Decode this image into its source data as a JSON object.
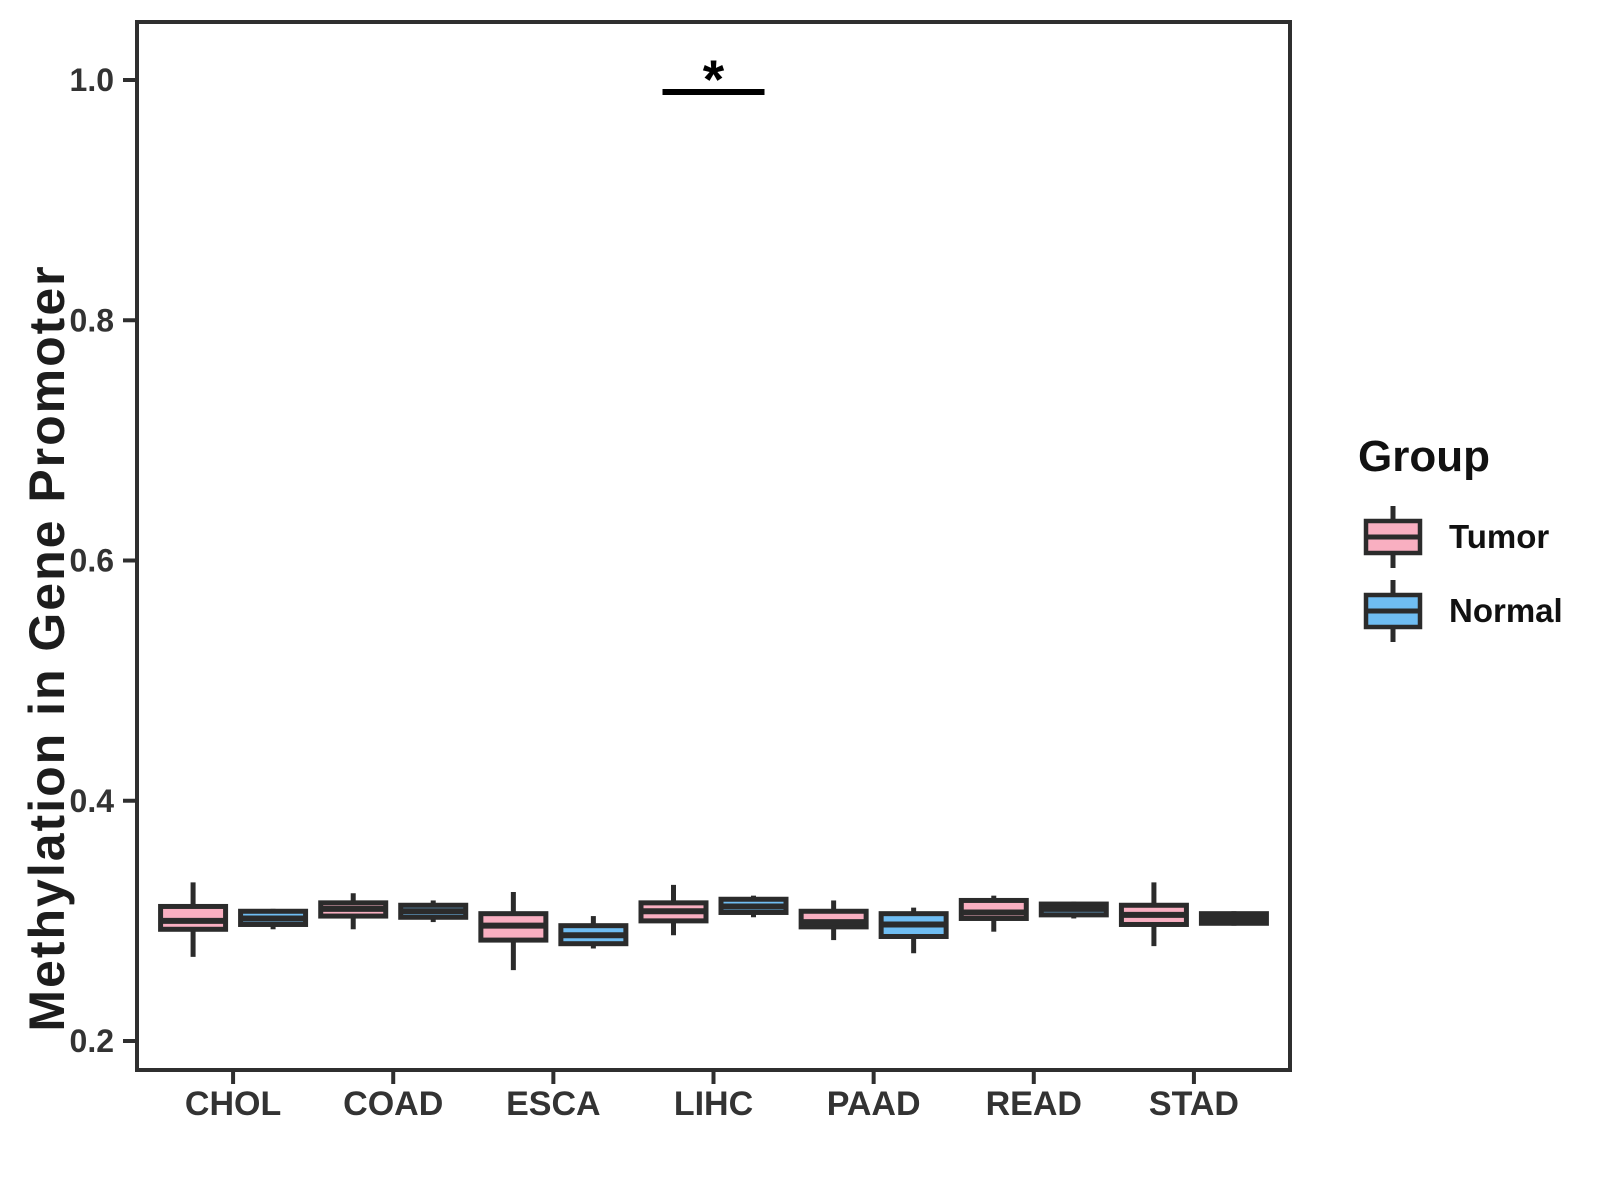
{
  "legend": {
    "title": "Group",
    "items": [
      {
        "label": "Tumor",
        "color": "#F9AFC1"
      },
      {
        "label": "Normal",
        "color": "#6FBDF2"
      }
    ]
  },
  "chart_data": {
    "type": "boxplot",
    "title": "",
    "ylabel": "Methylation in Gene Promoter",
    "xlabel": "",
    "grid": "off",
    "legend_position": "right",
    "categories": [
      "CHOL",
      "COAD",
      "ESCA",
      "LIHC",
      "PAAD",
      "READ",
      "STAD"
    ],
    "groups": [
      "Tumor",
      "Normal"
    ],
    "y_axis": {
      "range": [
        0.176,
        1.048
      ],
      "ticks": [
        {
          "label": "0.2",
          "value": 0.2
        },
        {
          "label": "0.4",
          "value": 0.4
        },
        {
          "label": "0.6",
          "value": 0.6
        },
        {
          "label": "0.8",
          "value": 0.8
        },
        {
          "label": "1.0",
          "value": 1.0
        }
      ]
    },
    "series": [
      {
        "name": "Tumor",
        "color": "#F9AFC1",
        "boxes": [
          {
            "category": "CHOL",
            "whisker_low": 0.27,
            "q1": 0.293,
            "median": 0.3,
            "q3": 0.312,
            "whisker_high": 0.332
          },
          {
            "category": "COAD",
            "whisker_low": 0.293,
            "q1": 0.304,
            "median": 0.31,
            "q3": 0.315,
            "whisker_high": 0.323
          },
          {
            "category": "ESCA",
            "whisker_low": 0.259,
            "q1": 0.284,
            "median": 0.296,
            "q3": 0.306,
            "whisker_high": 0.324
          },
          {
            "category": "LIHC",
            "whisker_low": 0.288,
            "q1": 0.3,
            "median": 0.308,
            "q3": 0.315,
            "whisker_high": 0.33
          },
          {
            "category": "PAAD",
            "whisker_low": 0.284,
            "q1": 0.295,
            "median": 0.299,
            "q3": 0.308,
            "whisker_high": 0.317
          },
          {
            "category": "READ",
            "whisker_low": 0.291,
            "q1": 0.302,
            "median": 0.307,
            "q3": 0.317,
            "whisker_high": 0.321
          },
          {
            "category": "STAD",
            "whisker_low": 0.279,
            "q1": 0.297,
            "median": 0.305,
            "q3": 0.313,
            "whisker_high": 0.332
          }
        ]
      },
      {
        "name": "Normal",
        "color": "#6FBDF2",
        "boxes": [
          {
            "category": "CHOL",
            "whisker_low": 0.293,
            "q1": 0.297,
            "median": 0.302,
            "q3": 0.308,
            "whisker_high": 0.31
          },
          {
            "category": "COAD",
            "whisker_low": 0.299,
            "q1": 0.303,
            "median": 0.308,
            "q3": 0.313,
            "whisker_high": 0.317
          },
          {
            "category": "ESCA",
            "whisker_low": 0.277,
            "q1": 0.281,
            "median": 0.288,
            "q3": 0.296,
            "whisker_high": 0.304
          },
          {
            "category": "LIHC",
            "whisker_low": 0.303,
            "q1": 0.307,
            "median": 0.312,
            "q3": 0.318,
            "whisker_high": 0.321
          },
          {
            "category": "PAAD",
            "whisker_low": 0.273,
            "q1": 0.287,
            "median": 0.297,
            "q3": 0.306,
            "whisker_high": 0.311
          },
          {
            "category": "READ",
            "whisker_low": 0.302,
            "q1": 0.305,
            "median": 0.31,
            "q3": 0.314,
            "whisker_high": 0.316
          },
          {
            "category": "STAD",
            "whisker_low": 0.296,
            "q1": 0.298,
            "median": 0.302,
            "q3": 0.306,
            "whisker_high": 0.308
          }
        ]
      }
    ],
    "annotation": {
      "label": "*",
      "category": "LIHC",
      "compares": [
        "Tumor",
        "Normal"
      ],
      "bar_value": 0.99
    },
    "style_colors": {
      "box_stroke": "#2B2B2B",
      "panel_border": "#2F2F2F",
      "tick_text": "#333333",
      "annotation": "#000000"
    }
  }
}
